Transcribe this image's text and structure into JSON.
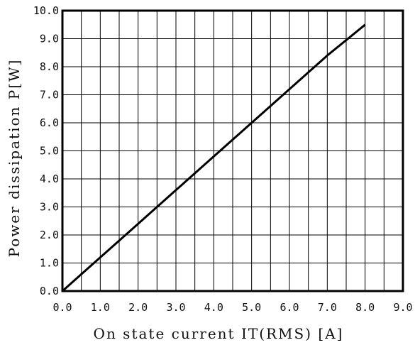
{
  "chart_data": {
    "type": "line",
    "xlabel": "On state current IT(RMS) [A]",
    "ylabel": "Power dissipation P[W]",
    "xlim": [
      0,
      9
    ],
    "ylim": [
      0,
      10
    ],
    "xticks": [
      "0.0",
      "0.5",
      "1.0",
      "1.5",
      "2.0",
      "2.5",
      "3.0",
      "3.5",
      "4.0",
      "4.5",
      "5.0",
      "5.5",
      "6.0",
      "6.5",
      "7.0",
      "7.5",
      "8.0",
      "8.5",
      "9.0"
    ],
    "xtick_labels": [
      "0.0",
      "1.0",
      "2.0",
      "3.0",
      "4.0",
      "5.0",
      "6.0",
      "7.0",
      "8.0",
      "9.0"
    ],
    "ytick_labels": [
      "0.0",
      "1.0",
      "2.0",
      "3.0",
      "4.0",
      "5.0",
      "6.0",
      "7.0",
      "8.0",
      "9.0",
      "10.0"
    ],
    "grid": true,
    "series": [
      {
        "x": [
          0,
          1,
          2,
          3,
          4,
          5,
          6,
          7,
          8
        ],
        "y": [
          0,
          1.2,
          2.4,
          3.6,
          4.8,
          6.0,
          7.2,
          8.4,
          9.5
        ]
      }
    ],
    "colors": {
      "line": "#000000",
      "grid": "#000000",
      "frame": "#000000"
    }
  }
}
